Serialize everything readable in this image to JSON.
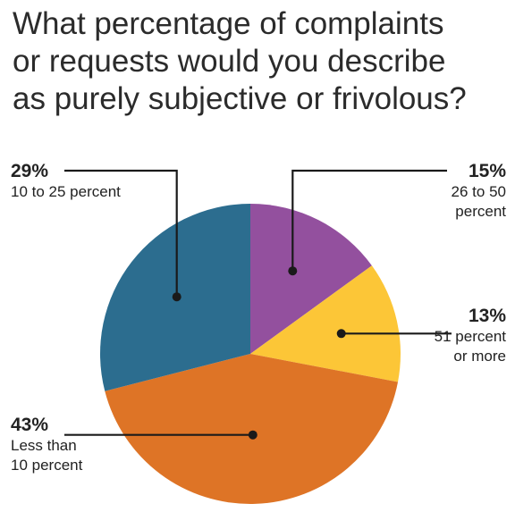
{
  "title_lines": [
    "What percentage of complaints",
    "or requests would you describe",
    "as purely subjective or frivolous?"
  ],
  "chart_data": {
    "type": "pie",
    "title": "What percentage of complaints or requests would you describe as purely subjective or frivolous?",
    "slices": [
      {
        "percent_label": "15%",
        "desc_lines": [
          "26 to 50",
          "percent"
        ],
        "value": 15,
        "color": "#93509e"
      },
      {
        "percent_label": "13%",
        "desc_lines": [
          "51 percent",
          "or more"
        ],
        "value": 13,
        "color": "#fcc637"
      },
      {
        "percent_label": "43%",
        "desc_lines": [
          "Less than",
          "10 percent"
        ],
        "value": 43,
        "color": "#de7426"
      },
      {
        "percent_label": "29%",
        "desc_lines": [
          "10 to 25 percent"
        ],
        "value": 29,
        "color": "#2c6d8f"
      }
    ],
    "start_angle": "12 o'clock",
    "direction": "clockwise",
    "leader_color": "#1a1a1a"
  }
}
